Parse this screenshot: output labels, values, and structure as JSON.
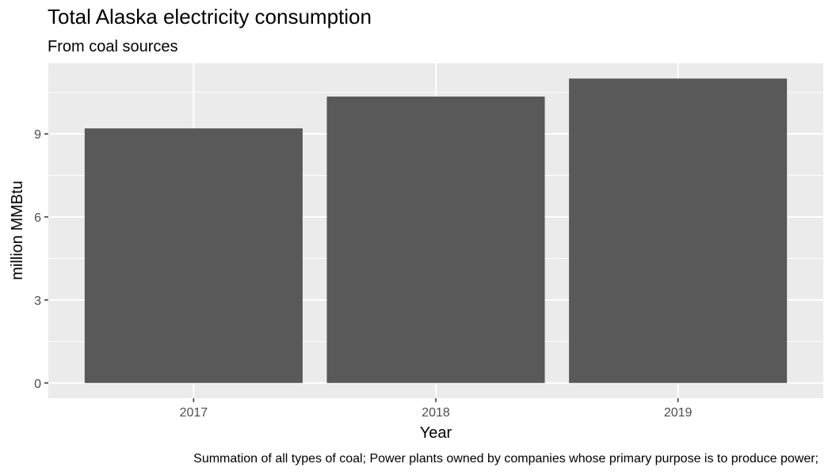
{
  "chart_data": {
    "type": "bar",
    "title": "Total Alaska electricity consumption",
    "subtitle": "From coal sources",
    "xlabel": "Year",
    "ylabel": "million MMBtu",
    "caption": "Summation of all types of coal; Power plants owned by companies whose primary purpose is to produce power;",
    "categories": [
      "2017",
      "2018",
      "2019"
    ],
    "values": [
      9.2,
      10.35,
      11.0
    ],
    "ylim": [
      -0.55,
      11.55
    ],
    "yticks": [
      0,
      3,
      6,
      9
    ],
    "ytick_labels": [
      "0",
      "3",
      "6",
      "9"
    ],
    "grid": true,
    "colors": {
      "bar": "#595959",
      "panel": "#ebebeb",
      "grid": "#ffffff",
      "tick_text": "#4d4d4d",
      "tick_mark": "#333333"
    }
  }
}
